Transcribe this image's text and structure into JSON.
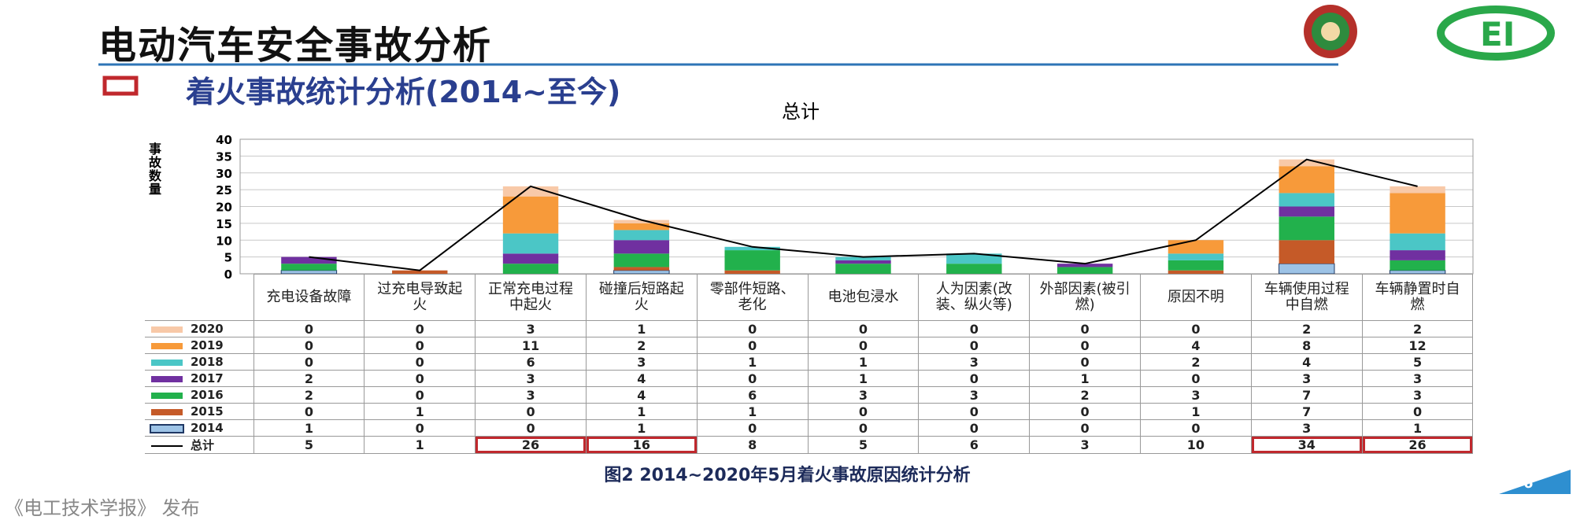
{
  "header": {
    "title": "电动汽车安全事故分析",
    "subtitle": "着火事故统计分析(2014~至今)"
  },
  "chart_data": {
    "type": "bar",
    "stacked": true,
    "title": "总计",
    "y_label": "事故数量",
    "categories": [
      "充电设备故障",
      "过充电导致起火",
      "正常充电过程中起火",
      "碰撞后短路起火",
      "零部件短路、老化",
      "电池包浸水",
      "人为因素(改装、纵火等)",
      "外部因素(被引燃)",
      "原因不明",
      "车辆使用过程中自燃",
      "车辆静置时自燃"
    ],
    "series": [
      {
        "name": "2014",
        "color": "#9dc3e6",
        "values": [
          1,
          0,
          0,
          1,
          0,
          0,
          0,
          0,
          0,
          3,
          1
        ]
      },
      {
        "name": "2015",
        "color": "#c55a28",
        "values": [
          0,
          1,
          0,
          1,
          1,
          0,
          0,
          0,
          1,
          7,
          0
        ]
      },
      {
        "name": "2016",
        "color": "#22b14c",
        "values": [
          2,
          0,
          3,
          4,
          6,
          3,
          3,
          2,
          3,
          7,
          3
        ]
      },
      {
        "name": "2017",
        "color": "#7030a0",
        "values": [
          2,
          0,
          3,
          4,
          0,
          1,
          0,
          1,
          0,
          3,
          3
        ]
      },
      {
        "name": "2018",
        "color": "#4bc6c6",
        "values": [
          0,
          0,
          6,
          3,
          1,
          1,
          3,
          0,
          2,
          4,
          5
        ]
      },
      {
        "name": "2019",
        "color": "#f79a3a",
        "values": [
          0,
          0,
          11,
          2,
          0,
          0,
          0,
          0,
          4,
          8,
          12
        ]
      },
      {
        "name": "2020",
        "color": "#f8c9a8",
        "values": [
          0,
          0,
          3,
          1,
          0,
          0,
          0,
          0,
          0,
          2,
          2
        ]
      },
      {
        "name": "总计",
        "type": "line",
        "color": "#000000",
        "values": [
          5,
          1,
          26,
          16,
          8,
          5,
          6,
          3,
          10,
          34,
          26
        ]
      }
    ],
    "ylim": [
      0,
      40
    ],
    "yticks": [
      0,
      5,
      10,
      15,
      20,
      25,
      30,
      35,
      40
    ],
    "grid": true
  },
  "caption": "图2 2014~2020年5月着火事故原因统计分析",
  "footer": "《电工技术学报》 发布",
  "page_number": "6"
}
